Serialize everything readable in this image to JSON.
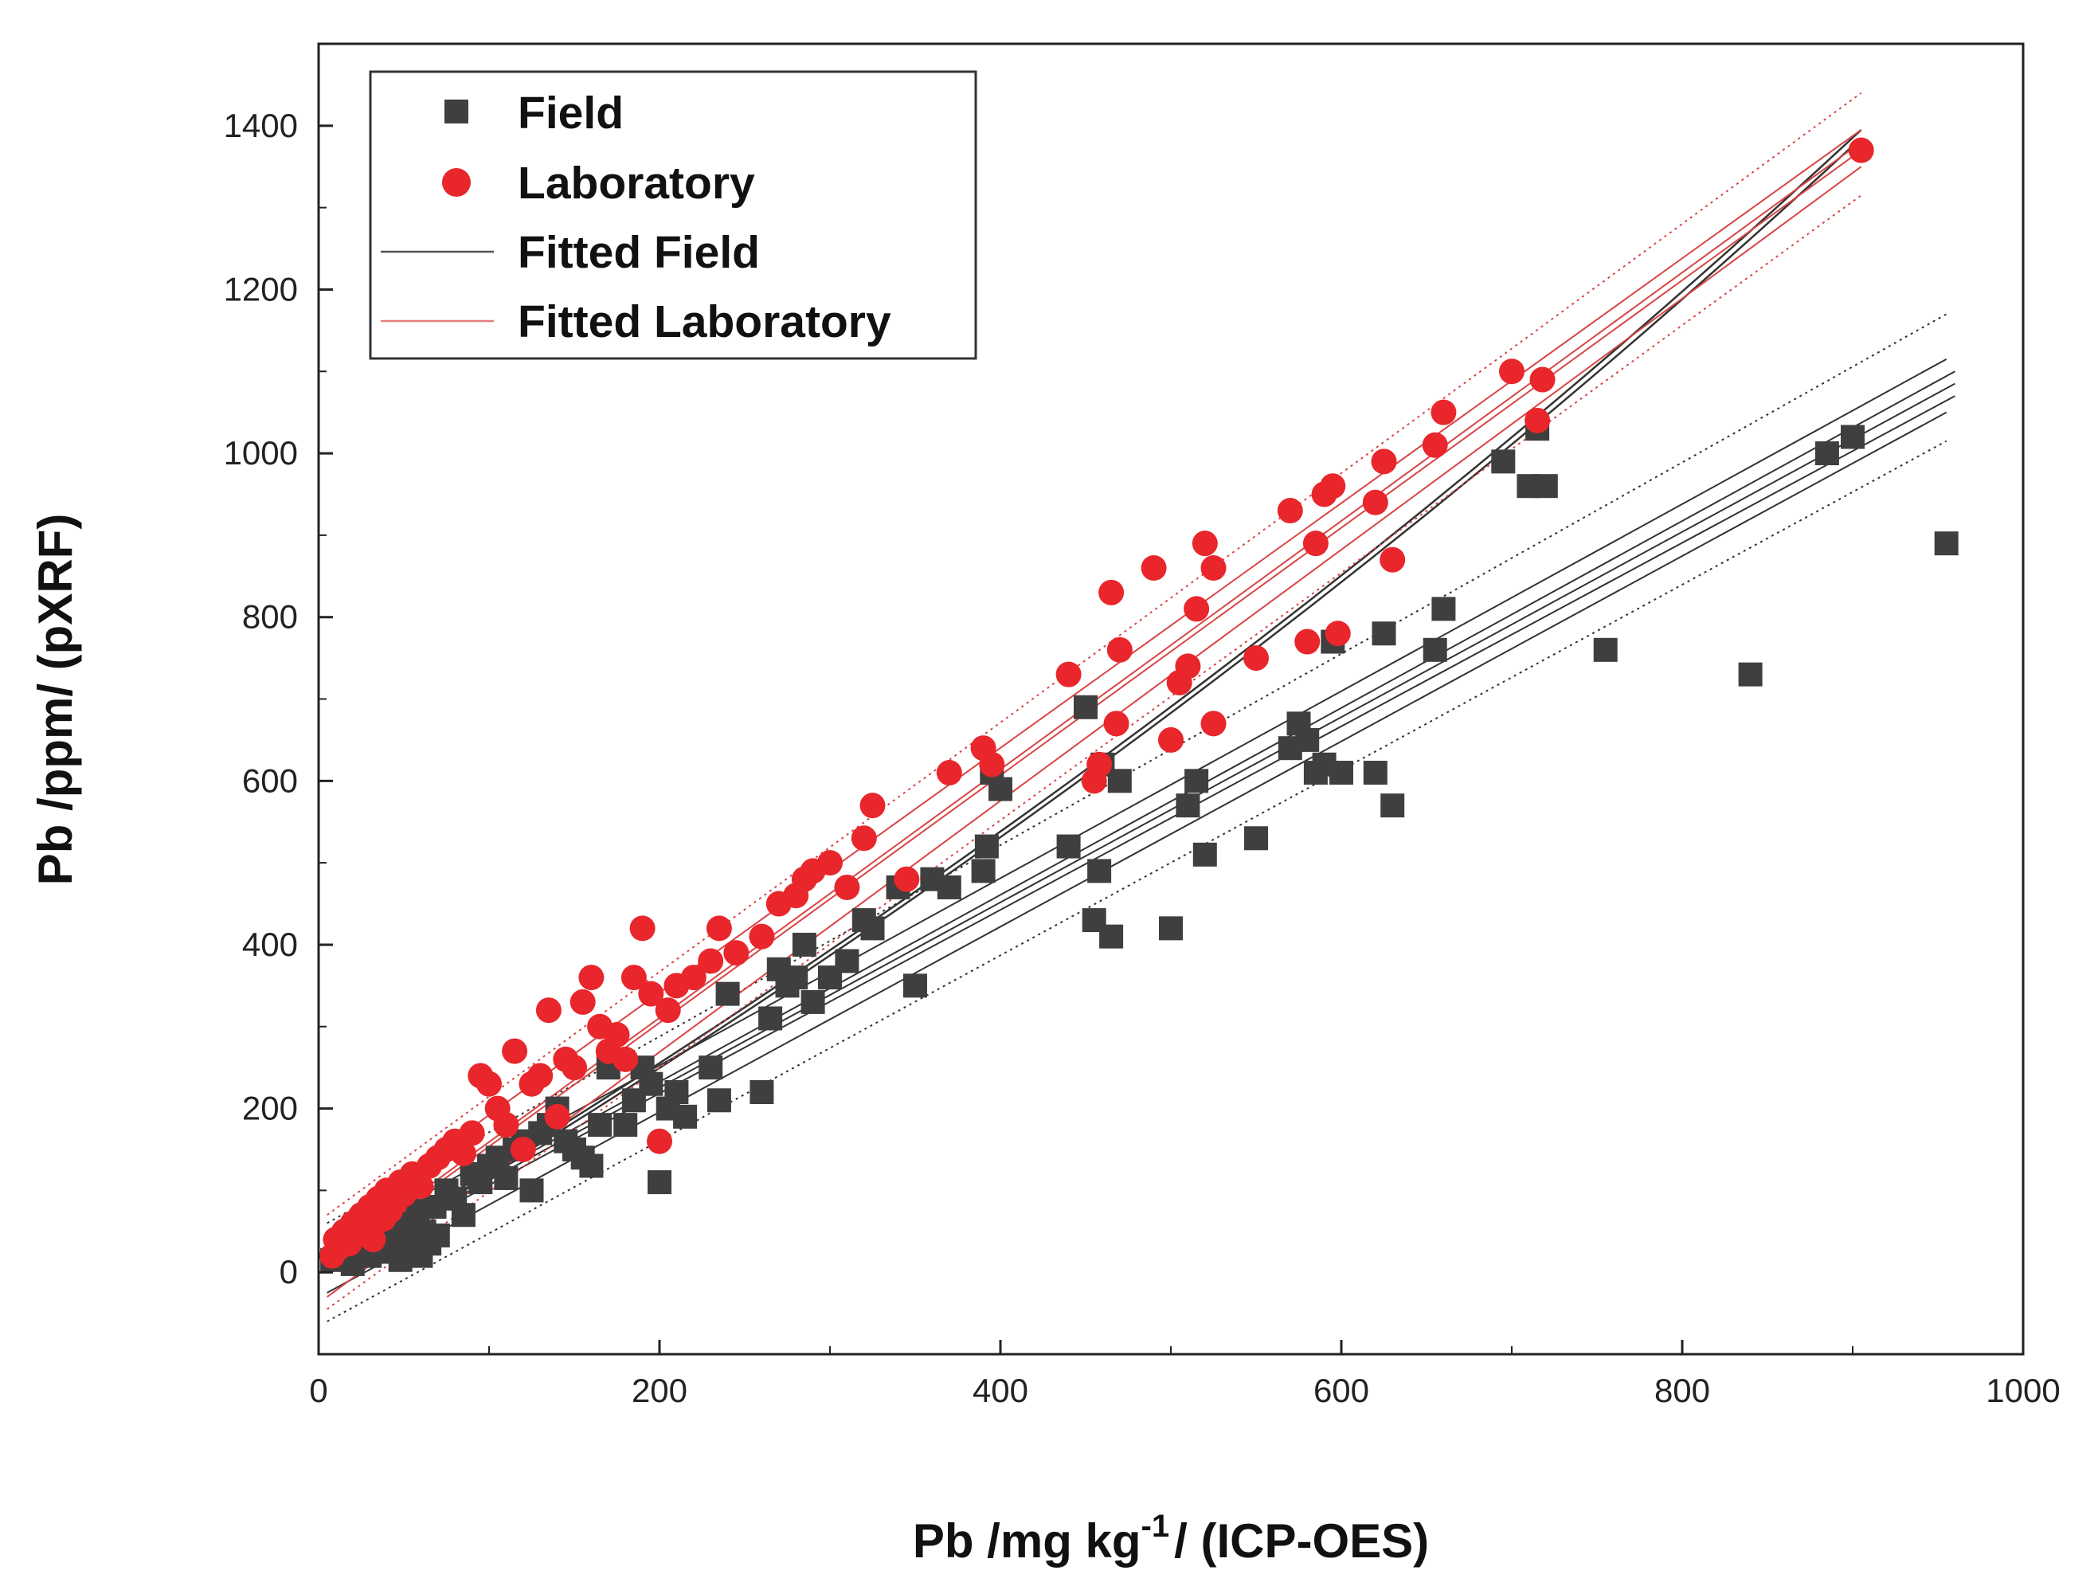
{
  "chart_data": {
    "type": "scatter",
    "title": "",
    "xlabel": {
      "main": "Pb /mg kg",
      "sup": "-1",
      "suffix": "/ (ICP-OES)"
    },
    "ylabel": "Pb /ppm/ (pXRF)",
    "xlim": [
      0,
      1000
    ],
    "ylim": [
      -100,
      1500
    ],
    "x_ticks": [
      0,
      200,
      400,
      600,
      800,
      1000
    ],
    "y_ticks": [
      0,
      200,
      400,
      600,
      800,
      1000,
      1200,
      1400
    ],
    "grid": false,
    "legend_position": "top-left",
    "legend": [
      {
        "label": "Field",
        "marker": "square",
        "color": "#3f3f3f"
      },
      {
        "label": "Laboratory",
        "marker": "circle",
        "color": "#e8262b"
      },
      {
        "label": "Fitted Field",
        "marker": "line",
        "color": "#555555"
      },
      {
        "label": "Fitted Laboratory",
        "marker": "line",
        "color": "#e87c7c"
      }
    ],
    "series": [
      {
        "name": "Field",
        "marker": "square",
        "color": "#3f3f3f",
        "points": [
          [
            8,
            15
          ],
          [
            12,
            30
          ],
          [
            15,
            20
          ],
          [
            18,
            40
          ],
          [
            20,
            10
          ],
          [
            22,
            55
          ],
          [
            25,
            30
          ],
          [
            28,
            45
          ],
          [
            30,
            20
          ],
          [
            32,
            65
          ],
          [
            35,
            50
          ],
          [
            38,
            25
          ],
          [
            40,
            70
          ],
          [
            42,
            35
          ],
          [
            45,
            55
          ],
          [
            48,
            15
          ],
          [
            50,
            40
          ],
          [
            52,
            60
          ],
          [
            55,
            30
          ],
          [
            58,
            75
          ],
          [
            60,
            20
          ],
          [
            62,
            50
          ],
          [
            65,
            35
          ],
          [
            68,
            80
          ],
          [
            70,
            45
          ],
          [
            75,
            100
          ],
          [
            80,
            90
          ],
          [
            85,
            70
          ],
          [
            90,
            120
          ],
          [
            95,
            110
          ],
          [
            100,
            130
          ],
          [
            105,
            140
          ],
          [
            110,
            115
          ],
          [
            115,
            150
          ],
          [
            120,
            160
          ],
          [
            125,
            100
          ],
          [
            130,
            170
          ],
          [
            135,
            180
          ],
          [
            140,
            200
          ],
          [
            145,
            160
          ],
          [
            150,
            150
          ],
          [
            155,
            140
          ],
          [
            160,
            130
          ],
          [
            165,
            180
          ],
          [
            170,
            250
          ],
          [
            180,
            180
          ],
          [
            185,
            210
          ],
          [
            190,
            250
          ],
          [
            195,
            230
          ],
          [
            200,
            110
          ],
          [
            205,
            200
          ],
          [
            210,
            220
          ],
          [
            215,
            190
          ],
          [
            230,
            250
          ],
          [
            235,
            210
          ],
          [
            240,
            340
          ],
          [
            260,
            220
          ],
          [
            265,
            310
          ],
          [
            270,
            370
          ],
          [
            275,
            350
          ],
          [
            280,
            360
          ],
          [
            285,
            400
          ],
          [
            290,
            330
          ],
          [
            300,
            360
          ],
          [
            310,
            380
          ],
          [
            320,
            430
          ],
          [
            325,
            420
          ],
          [
            340,
            470
          ],
          [
            350,
            350
          ],
          [
            360,
            480
          ],
          [
            370,
            470
          ],
          [
            390,
            490
          ],
          [
            392,
            520
          ],
          [
            395,
            610
          ],
          [
            400,
            590
          ],
          [
            440,
            520
          ],
          [
            450,
            690
          ],
          [
            455,
            430
          ],
          [
            458,
            490
          ],
          [
            460,
            620
          ],
          [
            465,
            410
          ],
          [
            470,
            600
          ],
          [
            500,
            420
          ],
          [
            510,
            570
          ],
          [
            515,
            600
          ],
          [
            520,
            510
          ],
          [
            550,
            530
          ],
          [
            570,
            640
          ],
          [
            575,
            670
          ],
          [
            580,
            650
          ],
          [
            585,
            610
          ],
          [
            590,
            620
          ],
          [
            595,
            770
          ],
          [
            600,
            610
          ],
          [
            620,
            610
          ],
          [
            625,
            780
          ],
          [
            630,
            570
          ],
          [
            655,
            760
          ],
          [
            660,
            810
          ],
          [
            695,
            990
          ],
          [
            710,
            960
          ],
          [
            715,
            1030
          ],
          [
            720,
            960
          ],
          [
            755,
            760
          ],
          [
            840,
            730
          ],
          [
            885,
            1000
          ],
          [
            900,
            1020
          ],
          [
            955,
            890
          ]
        ]
      },
      {
        "name": "Laboratory",
        "marker": "circle",
        "color": "#e8262b",
        "points": [
          [
            8,
            20
          ],
          [
            10,
            40
          ],
          [
            12,
            30
          ],
          [
            15,
            50
          ],
          [
            18,
            35
          ],
          [
            20,
            60
          ],
          [
            22,
            45
          ],
          [
            25,
            70
          ],
          [
            28,
            55
          ],
          [
            30,
            80
          ],
          [
            32,
            40
          ],
          [
            35,
            90
          ],
          [
            38,
            65
          ],
          [
            40,
            100
          ],
          [
            42,
            75
          ],
          [
            45,
            85
          ],
          [
            48,
            110
          ],
          [
            50,
            95
          ],
          [
            55,
            120
          ],
          [
            60,
            105
          ],
          [
            65,
            130
          ],
          [
            70,
            140
          ],
          [
            75,
            150
          ],
          [
            80,
            160
          ],
          [
            85,
            145
          ],
          [
            90,
            170
          ],
          [
            95,
            240
          ],
          [
            100,
            230
          ],
          [
            105,
            200
          ],
          [
            110,
            180
          ],
          [
            115,
            270
          ],
          [
            120,
            150
          ],
          [
            125,
            230
          ],
          [
            130,
            240
          ],
          [
            135,
            320
          ],
          [
            140,
            190
          ],
          [
            145,
            260
          ],
          [
            150,
            250
          ],
          [
            155,
            330
          ],
          [
            160,
            360
          ],
          [
            165,
            300
          ],
          [
            170,
            270
          ],
          [
            175,
            290
          ],
          [
            180,
            260
          ],
          [
            185,
            360
          ],
          [
            190,
            420
          ],
          [
            195,
            340
          ],
          [
            200,
            160
          ],
          [
            205,
            320
          ],
          [
            210,
            350
          ],
          [
            220,
            360
          ],
          [
            230,
            380
          ],
          [
            235,
            420
          ],
          [
            245,
            390
          ],
          [
            260,
            410
          ],
          [
            270,
            450
          ],
          [
            280,
            460
          ],
          [
            285,
            480
          ],
          [
            290,
            490
          ],
          [
            300,
            500
          ],
          [
            310,
            470
          ],
          [
            320,
            530
          ],
          [
            325,
            570
          ],
          [
            345,
            480
          ],
          [
            370,
            610
          ],
          [
            390,
            640
          ],
          [
            395,
            620
          ],
          [
            440,
            730
          ],
          [
            455,
            600
          ],
          [
            458,
            620
          ],
          [
            465,
            830
          ],
          [
            468,
            670
          ],
          [
            470,
            760
          ],
          [
            490,
            860
          ],
          [
            500,
            650
          ],
          [
            505,
            720
          ],
          [
            510,
            740
          ],
          [
            515,
            810
          ],
          [
            520,
            890
          ],
          [
            525,
            860
          ],
          [
            525,
            670
          ],
          [
            550,
            750
          ],
          [
            570,
            930
          ],
          [
            580,
            770
          ],
          [
            585,
            890
          ],
          [
            590,
            950
          ],
          [
            595,
            960
          ],
          [
            598,
            780
          ],
          [
            620,
            940
          ],
          [
            625,
            990
          ],
          [
            630,
            870
          ],
          [
            655,
            1010
          ],
          [
            660,
            1050
          ],
          [
            700,
            1100
          ],
          [
            715,
            1040
          ],
          [
            718,
            1090
          ],
          [
            905,
            1370
          ]
        ]
      }
    ],
    "fits": [
      {
        "name": "Fitted Field",
        "color": "#333333",
        "solid_segments": [
          {
            "x": [
              5,
              960
            ],
            "y": [
              10,
              1100
            ]
          },
          {
            "x": [
              5,
              960
            ],
            "y": [
              5,
              1085
            ]
          },
          {
            "x": [
              5,
              960
            ],
            "y": [
              0,
              1070
            ]
          },
          {
            "x": [
              5,
              955
            ],
            "y": [
              30,
              1115
            ]
          },
          {
            "x": [
              5,
              955
            ],
            "y": [
              -25,
              1050
            ]
          }
        ],
        "dotted_segments": [
          {
            "x": [
              5,
              955
            ],
            "y": [
              60,
              1170
            ]
          },
          {
            "x": [
              5,
              955
            ],
            "y": [
              -60,
              1015
            ]
          }
        ],
        "curved_segments": [
          {
            "x": [
              5,
              905
            ],
            "y": [
              5,
              1395
            ]
          },
          {
            "x": [
              5,
              905
            ],
            "y": [
              0,
              1385
            ]
          }
        ]
      },
      {
        "name": "Fitted Laboratory",
        "color": "#d94444",
        "solid_segments": [
          {
            "x": [
              5,
              905
            ],
            "y": [
              15,
              1380
            ]
          },
          {
            "x": [
              5,
              905
            ],
            "y": [
              10,
              1370
            ]
          },
          {
            "x": [
              5,
              905
            ],
            "y": [
              50,
              1395
            ]
          },
          {
            "x": [
              5,
              905
            ],
            "y": [
              -30,
              1350
            ]
          }
        ],
        "dotted_segments": [
          {
            "x": [
              5,
              905
            ],
            "y": [
              70,
              1440
            ]
          },
          {
            "x": [
              5,
              905
            ],
            "y": [
              -45,
              1315
            ]
          }
        ]
      }
    ]
  }
}
